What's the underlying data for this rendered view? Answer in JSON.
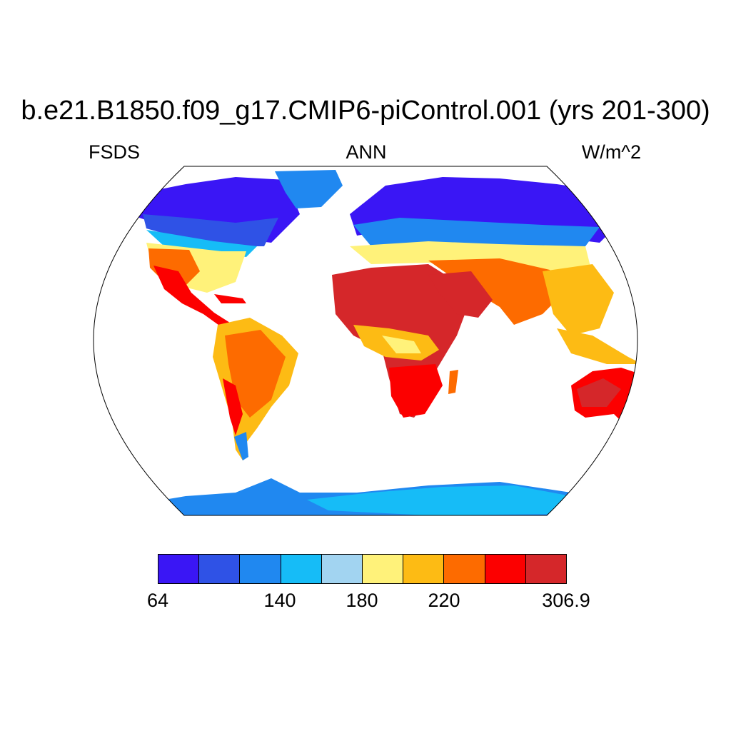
{
  "title": "b.e21.B1850.f09_g17.CMIP6-piControl.001 (yrs 201-300)",
  "left_label": "FSDS",
  "center_label": "ANN",
  "right_label": "W/m^2",
  "colorbar": {
    "colors": [
      "#3a16f5",
      "#2f52e6",
      "#2088f0",
      "#16bcf7",
      "#a2d4f1",
      "#fff27a",
      "#fdbb14",
      "#fd6b00",
      "#fc0000",
      "#d5272a"
    ],
    "labels": [
      "64",
      "140",
      "180",
      "220",
      "306.9"
    ]
  },
  "colors": {
    "ocean": "#ffffff",
    "outline": "#000000"
  }
}
